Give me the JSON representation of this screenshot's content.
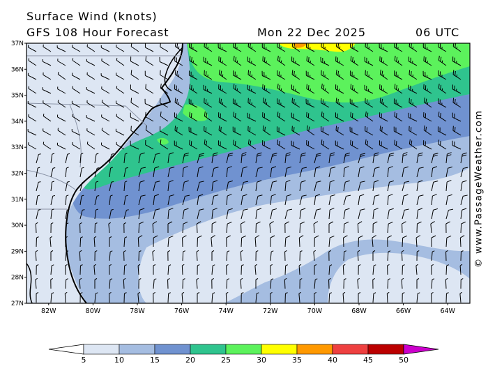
{
  "header": {
    "title": "Surface Wind (knots)",
    "forecast": "GFS 108 Hour Forecast",
    "date": "Mon 22 Dec 2025",
    "time": "06 UTC"
  },
  "credit": "© www.PassageWeather.com",
  "map": {
    "lat_labels": [
      "37N",
      "36N",
      "35N",
      "34N",
      "33N",
      "32N",
      "31N",
      "30N",
      "29N",
      "28N",
      "27N"
    ],
    "lon_labels": [
      "82W",
      "80W",
      "78W",
      "76W",
      "74W",
      "72W",
      "70W",
      "68W",
      "66W",
      "64W"
    ],
    "lon_range": [
      -83,
      -63
    ],
    "lat_range": [
      27,
      37
    ]
  },
  "legend": {
    "tick_labels": [
      "5",
      "10",
      "15",
      "20",
      "25",
      "30",
      "35",
      "40",
      "45",
      "50"
    ],
    "colors": [
      "#ffffff",
      "#dde6f3",
      "#a5bde1",
      "#7092d0",
      "#2fc48e",
      "#5cf25c",
      "#ffff00",
      "#ff9900",
      "#ee4040",
      "#bb0000",
      "#cc00cc"
    ]
  }
}
